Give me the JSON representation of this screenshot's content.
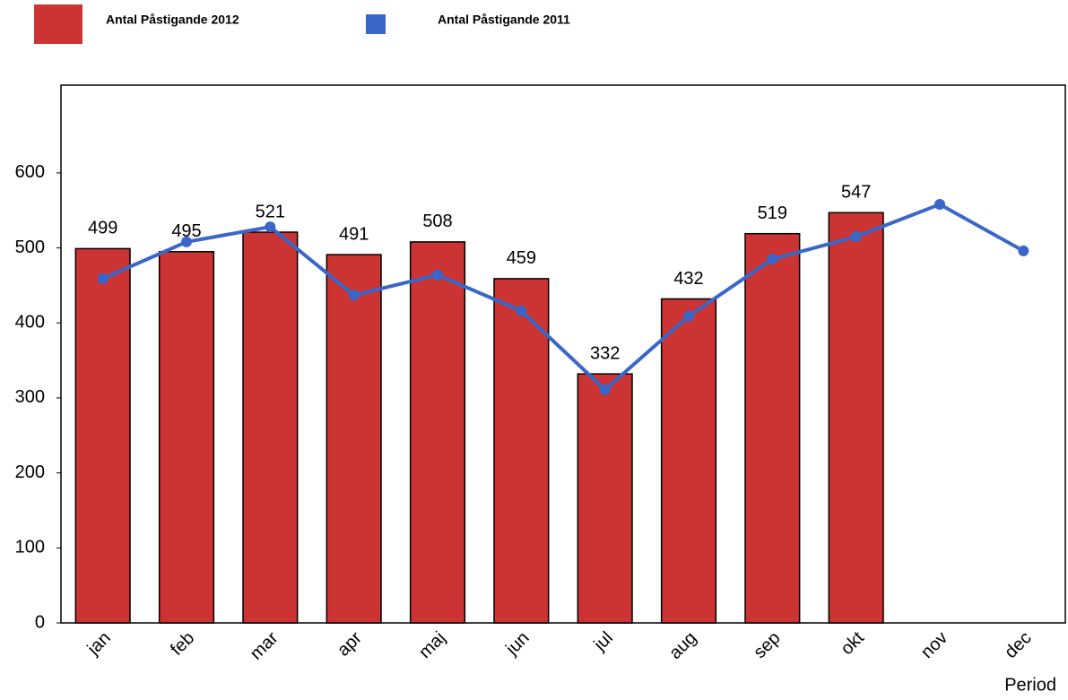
{
  "chart_data": {
    "type": "bar_line",
    "x_label": "Period",
    "categories": [
      "jan",
      "feb",
      "mar",
      "apr",
      "maj",
      "jun",
      "jul",
      "aug",
      "sep",
      "okt",
      "nov",
      "dec"
    ],
    "series": [
      {
        "name": "Antal Påstigande 2012",
        "type": "bar",
        "color": "#cc3333",
        "values": [
          499,
          495,
          521,
          491,
          508,
          459,
          332,
          432,
          519,
          547,
          null,
          null
        ]
      },
      {
        "name": "Antal Påstigande 2011",
        "type": "line",
        "color": "#3a66c8",
        "values": [
          459,
          508,
          528,
          437,
          464,
          416,
          311,
          409,
          485,
          515,
          558,
          496
        ]
      }
    ],
    "ylim": [
      0,
      717
    ],
    "yticks": [
      0,
      100,
      200,
      300,
      400,
      500,
      600
    ]
  }
}
